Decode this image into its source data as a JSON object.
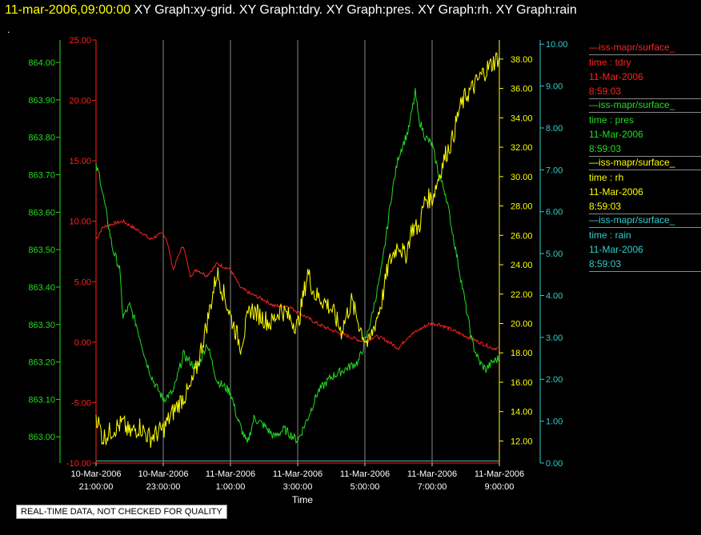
{
  "header": {
    "timestamp": "11-mar-2006,09:00:00",
    "titles": "XY Graph:xy-grid.  XY Graph:tdry.  XY Graph:pres.  XY Graph:rh.  XY Graph:rain"
  },
  "corner_mark": ".",
  "footer": "REAL-TIME DATA, NOT CHECKED FOR QUALITY",
  "legend": [
    {
      "name": "iss-mapr/surface_",
      "var": "time : tdry",
      "date": "11-Mar-2006",
      "time": "8:59:03",
      "color": "#ff2020"
    },
    {
      "name": "iss-mapr/surface_",
      "var": "time : pres",
      "date": "11-Mar-2006",
      "time": "8:59:03",
      "color": "#22dd22"
    },
    {
      "name": "iss-mapr/surface_",
      "var": "time : rh",
      "date": "11-Mar-2006",
      "time": "8:59:03",
      "color": "#ffff00"
    },
    {
      "name": "iss-mapr/surface_",
      "var": "time : rain",
      "date": "11-Mar-2006",
      "time": "8:59:03",
      "color": "#33cccc"
    }
  ],
  "chart_data": {
    "type": "line",
    "xlabel": "Time",
    "x_ticks": [
      {
        "date": "10-Mar-2006",
        "time": "21:00:00",
        "h": 0
      },
      {
        "date": "10-Mar-2006",
        "time": "23:00:00",
        "h": 2
      },
      {
        "date": "11-Mar-2006",
        "time": "1:00:00",
        "h": 4
      },
      {
        "date": "11-Mar-2006",
        "time": "3:00:00",
        "h": 6
      },
      {
        "date": "11-Mar-2006",
        "time": "5:00:00",
        "h": 8
      },
      {
        "date": "11-Mar-2006",
        "time": "7:00:00",
        "h": 10
      },
      {
        "date": "11-Mar-2006",
        "time": "9:00:00",
        "h": 12
      }
    ],
    "xlim": [
      0,
      12
    ],
    "grid": "vertical",
    "axes": [
      {
        "id": "tdry",
        "color": "#ff2020",
        "ylim": [
          -10,
          25
        ],
        "ticks": [
          "-10.00",
          "-5.00",
          "0.00",
          "5.00",
          "10.00",
          "15.00",
          "20.00",
          "25.00"
        ]
      },
      {
        "id": "pres",
        "color": "#22dd22",
        "ylim": [
          862.93,
          864.06
        ],
        "ticks": [
          "863.00",
          "863.10",
          "863.20",
          "863.30",
          "863.40",
          "863.50",
          "863.60",
          "863.70",
          "863.80",
          "863.90",
          "864.00"
        ]
      },
      {
        "id": "rh",
        "color": "#ffff00",
        "ylim": [
          10.5,
          39.3
        ],
        "ticks": [
          "12.00",
          "14.00",
          "16.00",
          "18.00",
          "20.00",
          "22.00",
          "24.00",
          "26.00",
          "28.00",
          "30.00",
          "32.00",
          "34.00",
          "36.00",
          "38.00"
        ]
      },
      {
        "id": "rain",
        "color": "#33cccc",
        "ylim": [
          0,
          10.1
        ],
        "ticks": [
          "0.00",
          "1.00",
          "2.00",
          "3.00",
          "4.00",
          "5.00",
          "6.00",
          "7.00",
          "8.00",
          "9.00",
          "10.00"
        ]
      }
    ],
    "series": [
      {
        "axis": "tdry",
        "color": "#ff2020",
        "points": [
          [
            0,
            8.5
          ],
          [
            0.2,
            9.5
          ],
          [
            0.5,
            9.8
          ],
          [
            0.8,
            10.0
          ],
          [
            1.1,
            9.5
          ],
          [
            1.4,
            9.0
          ],
          [
            1.6,
            8.5
          ],
          [
            1.8,
            8.8
          ],
          [
            2.0,
            9.0
          ],
          [
            2.1,
            8.5
          ],
          [
            2.3,
            6.0
          ],
          [
            2.5,
            7.5
          ],
          [
            2.6,
            8.0
          ],
          [
            2.8,
            5.5
          ],
          [
            3.0,
            6.0
          ],
          [
            3.3,
            5.5
          ],
          [
            3.6,
            6.5
          ],
          [
            4.0,
            6.0
          ],
          [
            4.3,
            4.5
          ],
          [
            4.6,
            4.0
          ],
          [
            5.0,
            3.5
          ],
          [
            5.3,
            3.0
          ],
          [
            5.7,
            3.0
          ],
          [
            6.0,
            2.5
          ],
          [
            6.3,
            2.0
          ],
          [
            6.6,
            1.5
          ],
          [
            7.0,
            1.0
          ],
          [
            7.5,
            0.5
          ],
          [
            8.0,
            0.0
          ],
          [
            8.3,
            0.5
          ],
          [
            8.6,
            0.2
          ],
          [
            9.0,
            -0.5
          ],
          [
            9.3,
            0.5
          ],
          [
            9.6,
            1.0
          ],
          [
            9.9,
            1.5
          ],
          [
            10.2,
            1.5
          ],
          [
            10.6,
            1.0
          ],
          [
            11.0,
            0.5
          ],
          [
            11.4,
            0.0
          ],
          [
            11.8,
            -0.5
          ],
          [
            12.0,
            -0.5
          ]
        ]
      },
      {
        "axis": "pres",
        "color": "#22dd22",
        "points": [
          [
            0,
            863.72
          ],
          [
            0.1,
            863.7
          ],
          [
            0.3,
            863.6
          ],
          [
            0.5,
            863.5
          ],
          [
            0.7,
            863.45
          ],
          [
            0.8,
            863.32
          ],
          [
            1.0,
            863.35
          ],
          [
            1.2,
            863.3
          ],
          [
            1.5,
            863.2
          ],
          [
            1.7,
            863.15
          ],
          [
            2.0,
            863.1
          ],
          [
            2.3,
            863.12
          ],
          [
            2.6,
            863.22
          ],
          [
            3.0,
            863.18
          ],
          [
            3.3,
            863.25
          ],
          [
            3.6,
            863.15
          ],
          [
            4.0,
            863.12
          ],
          [
            4.2,
            863.05
          ],
          [
            4.5,
            862.98
          ],
          [
            4.7,
            863.05
          ],
          [
            5.0,
            863.03
          ],
          [
            5.3,
            863.0
          ],
          [
            5.6,
            863.02
          ],
          [
            6.0,
            862.99
          ],
          [
            6.3,
            863.05
          ],
          [
            6.6,
            863.12
          ],
          [
            7.0,
            863.16
          ],
          [
            7.4,
            863.18
          ],
          [
            7.8,
            863.2
          ],
          [
            8.0,
            863.25
          ],
          [
            8.2,
            863.32
          ],
          [
            8.5,
            863.45
          ],
          [
            8.8,
            863.65
          ],
          [
            9.0,
            863.75
          ],
          [
            9.3,
            863.82
          ],
          [
            9.5,
            863.92
          ],
          [
            9.6,
            863.85
          ],
          [
            9.8,
            863.8
          ],
          [
            10.0,
            863.78
          ],
          [
            10.2,
            863.7
          ],
          [
            10.4,
            863.65
          ],
          [
            10.6,
            863.55
          ],
          [
            10.8,
            863.45
          ],
          [
            11.0,
            863.35
          ],
          [
            11.2,
            863.25
          ],
          [
            11.4,
            863.2
          ],
          [
            11.6,
            863.18
          ],
          [
            11.8,
            863.2
          ],
          [
            12.0,
            863.21
          ]
        ]
      },
      {
        "axis": "rh",
        "color": "#ffff00",
        "points": [
          [
            0,
            13.8
          ],
          [
            0.2,
            12.2
          ],
          [
            0.5,
            12.8
          ],
          [
            0.8,
            13.2
          ],
          [
            1.0,
            12.5
          ],
          [
            1.3,
            13.0
          ],
          [
            1.6,
            12.2
          ],
          [
            2.0,
            12.8
          ],
          [
            2.3,
            14.0
          ],
          [
            2.6,
            15.0
          ],
          [
            2.8,
            15.5
          ],
          [
            3.0,
            17.0
          ],
          [
            3.3,
            20.0
          ],
          [
            3.6,
            23.5
          ],
          [
            3.8,
            22.0
          ],
          [
            4.0,
            20.5
          ],
          [
            4.3,
            18.5
          ],
          [
            4.6,
            21.0
          ],
          [
            4.9,
            20.5
          ],
          [
            5.2,
            20.0
          ],
          [
            5.5,
            21.0
          ],
          [
            6.0,
            19.8
          ],
          [
            6.3,
            23.5
          ],
          [
            6.5,
            22.0
          ],
          [
            6.8,
            21.5
          ],
          [
            7.0,
            21.0
          ],
          [
            7.3,
            19.5
          ],
          [
            7.6,
            21.5
          ],
          [
            7.9,
            19.5
          ],
          [
            8.1,
            18.5
          ],
          [
            8.3,
            20.0
          ],
          [
            8.5,
            21.5
          ],
          [
            8.7,
            24.0
          ],
          [
            9.0,
            25.5
          ],
          [
            9.2,
            24.5
          ],
          [
            9.4,
            26.5
          ],
          [
            9.6,
            26.5
          ],
          [
            9.8,
            28.5
          ],
          [
            10.0,
            28.5
          ],
          [
            10.2,
            30.0
          ],
          [
            10.4,
            31.5
          ],
          [
            10.6,
            32.5
          ],
          [
            10.8,
            34.5
          ],
          [
            11.0,
            35.5
          ],
          [
            11.2,
            36.0
          ],
          [
            11.5,
            37.0
          ],
          [
            11.7,
            37.5
          ],
          [
            12.0,
            38.2
          ]
        ]
      },
      {
        "axis": "rain",
        "color": "#33cccc",
        "points": [
          [
            0,
            0.05
          ],
          [
            12,
            0.05
          ]
        ]
      }
    ]
  }
}
